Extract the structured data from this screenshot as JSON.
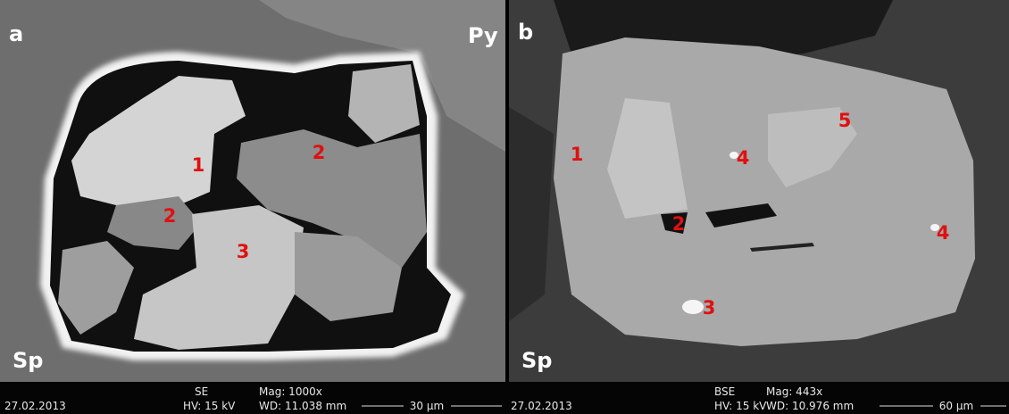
{
  "panels": [
    {
      "label": "a",
      "mineral_labels": [
        "Py",
        "Sp"
      ],
      "phase_labels": [
        "1",
        "2",
        "2",
        "3"
      ],
      "footer": {
        "date": "27.02.2013",
        "detector": "SE",
        "voltage": "HV: 15 kV",
        "magnification": "Mag: 1000x",
        "working_distance": "WD: 11.038 mm",
        "scale_bar": "30 µm"
      }
    },
    {
      "label": "b",
      "mineral_labels": [
        "Sp"
      ],
      "phase_labels": [
        "1",
        "4",
        "5",
        "2",
        "4",
        "3"
      ],
      "footer": {
        "date": "27.02.2013",
        "detector": "BSE",
        "voltage": "HV: 15 kV",
        "magnification": "Mag: 443x",
        "working_distance": "WD: 10.976 mm",
        "scale_bar": "60 µm"
      }
    }
  ]
}
